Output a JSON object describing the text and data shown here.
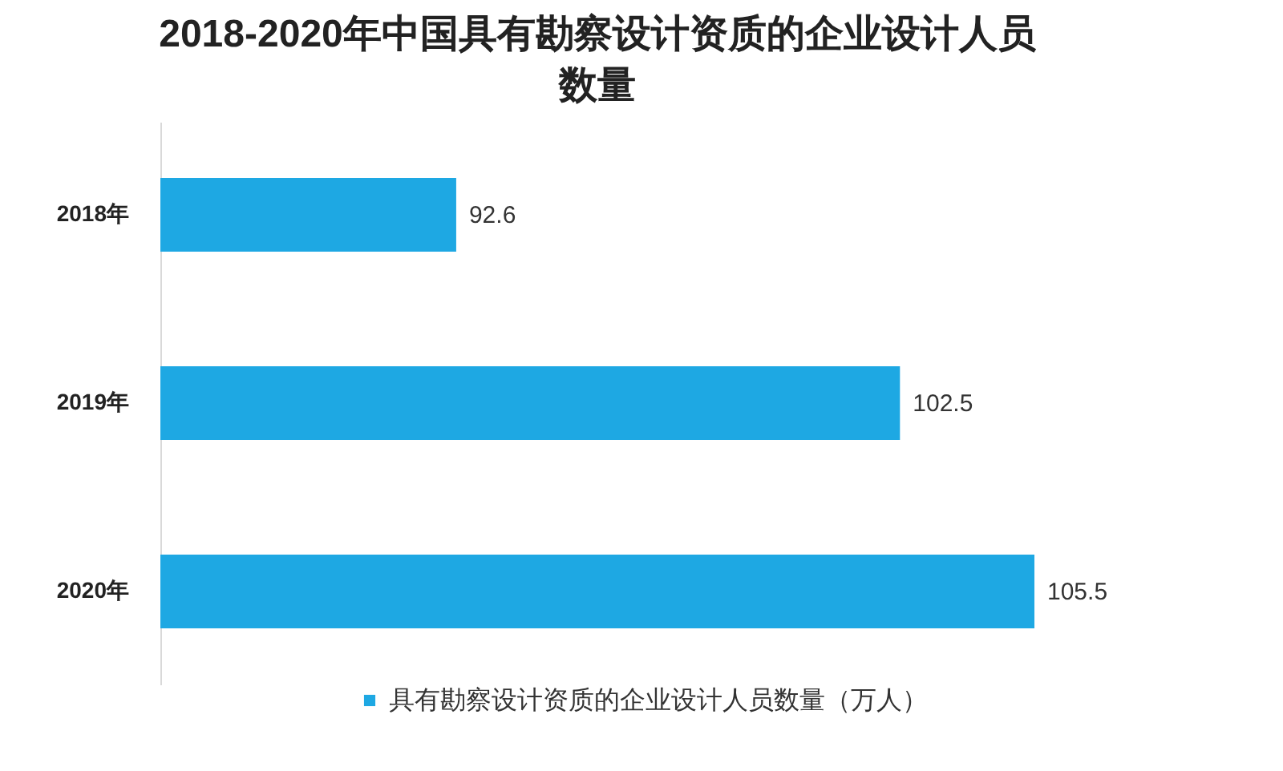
{
  "chart_data": {
    "type": "bar",
    "orientation": "horizontal",
    "title": "2018-2020年中国具有勘察设计资质的企业设计人员数量",
    "categories": [
      "2018年",
      "2019年",
      "2020年"
    ],
    "series": [
      {
        "name": "具有勘察设计资质的企业设计人员数量（万人）",
        "color": "#1ea8e3",
        "values": [
          92.6,
          102.5,
          105.5
        ]
      }
    ],
    "xlim": [
      86,
      105.5
    ],
    "data_labels": true,
    "legend": "bottom",
    "tick_labels": "y"
  }
}
